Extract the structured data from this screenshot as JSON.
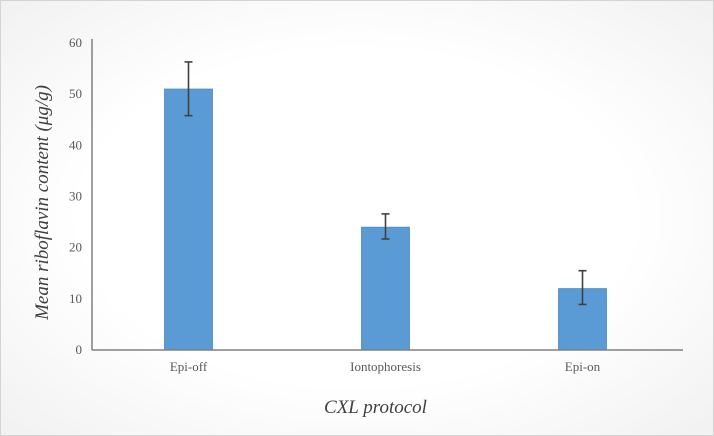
{
  "chart_data": {
    "type": "bar",
    "title": "",
    "xlabel": "CXL protocol",
    "ylabel": "Mean riboflavin content (μg/g)",
    "categories": [
      "Epi-off",
      "Iontophoresis",
      "Epi-on"
    ],
    "values": [
      51,
      24,
      12
    ],
    "error_bars": [
      [
        45.8,
        56.3
      ],
      [
        21.7,
        26.6
      ],
      [
        8.9,
        15.5
      ]
    ],
    "ylim": [
      0,
      60
    ],
    "yticks": [
      0,
      10,
      20,
      30,
      40,
      50,
      60
    ],
    "grid": false,
    "legend": "none",
    "colors": {
      "bar": "#5b9bd5",
      "bar_edge": "#4a89c2",
      "axis": "#808080",
      "error": "#404040"
    }
  }
}
